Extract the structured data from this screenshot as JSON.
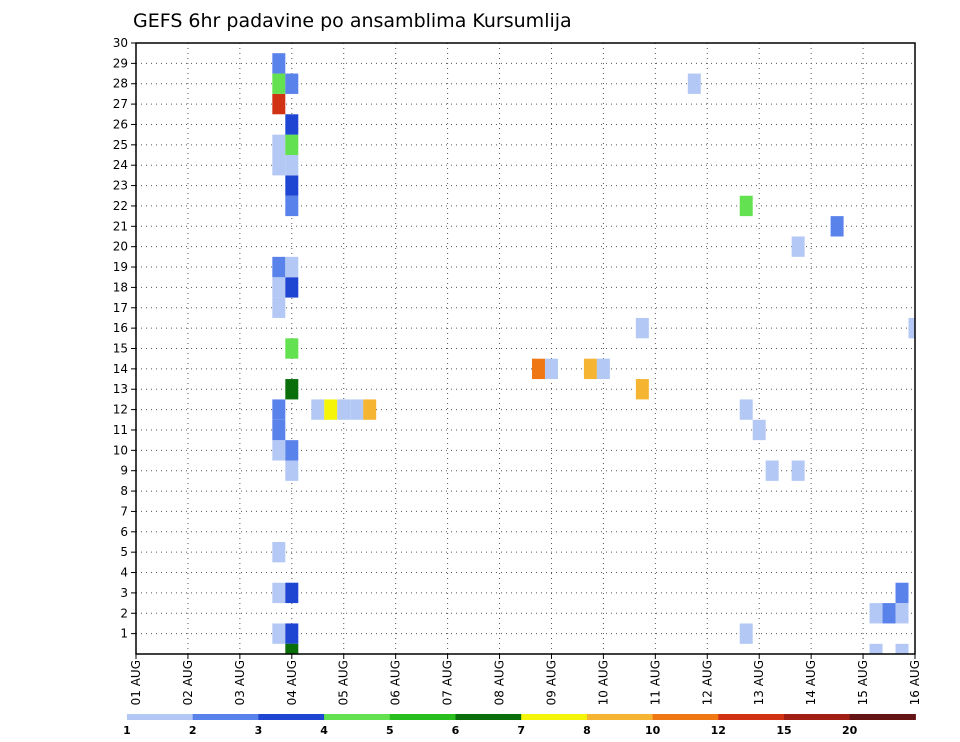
{
  "chart_data": {
    "type": "heatmap",
    "title": "GEFS 6hr padavine po ansamblima Kursumlija",
    "xlabel": "",
    "ylabel": "",
    "x_ticks": [
      "01 AUG",
      "02 AUG",
      "03 AUG",
      "04 AUG",
      "05 AUG",
      "06 AUG",
      "07 AUG",
      "08 AUG",
      "09 AUG",
      "10 AUG",
      "11 AUG",
      "12 AUG",
      "13 AUG",
      "14 AUG",
      "15 AUG",
      "16 AUG"
    ],
    "x_range_days": [
      0,
      15
    ],
    "y_ticks": [
      1,
      2,
      3,
      4,
      5,
      6,
      7,
      8,
      9,
      10,
      11,
      12,
      13,
      14,
      15,
      16,
      17,
      18,
      19,
      20,
      21,
      22,
      23,
      24,
      25,
      26,
      27,
      28,
      29,
      30
    ],
    "y_range": [
      0,
      30
    ],
    "grid": true,
    "colorbar": {
      "colors": [
        "#b4c8f5",
        "#5a82eb",
        "#1e46d2",
        "#64e150",
        "#28bf1e",
        "#0a6e0a",
        "#f5f50a",
        "#f5b432",
        "#f07814",
        "#d23214",
        "#a01e14",
        "#641414"
      ],
      "tick_labels": [
        "1",
        "2",
        "3",
        "4",
        "5",
        "6",
        "7",
        "8",
        "10",
        "12",
        "15",
        "20"
      ]
    },
    "cells": [
      {
        "t": 2.75,
        "m": 5,
        "v": 1
      },
      {
        "t": 2.75,
        "m": 1,
        "v": 1
      },
      {
        "t": 3.0,
        "m": 1,
        "v": 3
      },
      {
        "t": 3.0,
        "m": 0,
        "v": 6
      },
      {
        "t": 2.75,
        "m": 3,
        "v": 1
      },
      {
        "t": 3.0,
        "m": 3,
        "v": 3
      },
      {
        "t": 3.0,
        "m": 9,
        "v": 1
      },
      {
        "t": 2.75,
        "m": 10,
        "v": 1
      },
      {
        "t": 3.0,
        "m": 10,
        "v": 2
      },
      {
        "t": 2.75,
        "m": 11,
        "v": 2
      },
      {
        "t": 2.75,
        "m": 12,
        "v": 2
      },
      {
        "t": 3.0,
        "m": 13,
        "v": 6
      },
      {
        "t": 3.0,
        "m": 15,
        "v": 4
      },
      {
        "t": 2.75,
        "m": 17,
        "v": 1
      },
      {
        "t": 2.75,
        "m": 18,
        "v": 1
      },
      {
        "t": 3.0,
        "m": 18,
        "v": 3
      },
      {
        "t": 2.75,
        "m": 19,
        "v": 2
      },
      {
        "t": 3.0,
        "m": 19,
        "v": 1
      },
      {
        "t": 3.0,
        "m": 22,
        "v": 2
      },
      {
        "t": 3.0,
        "m": 23,
        "v": 3
      },
      {
        "t": 2.75,
        "m": 24,
        "v": 1
      },
      {
        "t": 3.0,
        "m": 24,
        "v": 1
      },
      {
        "t": 2.75,
        "m": 25,
        "v": 1
      },
      {
        "t": 3.0,
        "m": 25,
        "v": 4
      },
      {
        "t": 3.0,
        "m": 26,
        "v": 3
      },
      {
        "t": 2.75,
        "m": 27,
        "v": 12
      },
      {
        "t": 2.75,
        "m": 28,
        "v": 4
      },
      {
        "t": 3.0,
        "m": 28,
        "v": 2
      },
      {
        "t": 2.75,
        "m": 29,
        "v": 2
      },
      {
        "t": 3.5,
        "m": 12,
        "v": 1
      },
      {
        "t": 3.75,
        "m": 12,
        "v": 7
      },
      {
        "t": 4.0,
        "m": 12,
        "v": 1
      },
      {
        "t": 4.25,
        "m": 12,
        "v": 1
      },
      {
        "t": 4.5,
        "m": 12,
        "v": 8
      },
      {
        "t": 7.75,
        "m": 14,
        "v": 10
      },
      {
        "t": 8.0,
        "m": 14,
        "v": 1
      },
      {
        "t": 8.75,
        "m": 14,
        "v": 8
      },
      {
        "t": 9.0,
        "m": 14,
        "v": 1
      },
      {
        "t": 9.75,
        "m": 13,
        "v": 8
      },
      {
        "t": 9.75,
        "m": 16,
        "v": 1
      },
      {
        "t": 10.75,
        "m": 28,
        "v": 1
      },
      {
        "t": 11.75,
        "m": 1,
        "v": 1
      },
      {
        "t": 11.75,
        "m": 12,
        "v": 1
      },
      {
        "t": 11.75,
        "m": 22,
        "v": 4
      },
      {
        "t": 12.0,
        "m": 11,
        "v": 1
      },
      {
        "t": 12.25,
        "m": 9,
        "v": 1
      },
      {
        "t": 12.75,
        "m": 9,
        "v": 1
      },
      {
        "t": 12.75,
        "m": 20,
        "v": 1
      },
      {
        "t": 13.5,
        "m": 21,
        "v": 2
      },
      {
        "t": 14.25,
        "m": 2,
        "v": 1
      },
      {
        "t": 14.5,
        "m": 2,
        "v": 2
      },
      {
        "t": 14.75,
        "m": 2,
        "v": 1
      },
      {
        "t": 14.75,
        "m": 3,
        "v": 2
      },
      {
        "t": 14.25,
        "m": 0,
        "v": 1
      },
      {
        "t": 14.75,
        "m": 0,
        "v": 1
      },
      {
        "t": 15.0,
        "m": 16,
        "v": 1
      }
    ]
  }
}
